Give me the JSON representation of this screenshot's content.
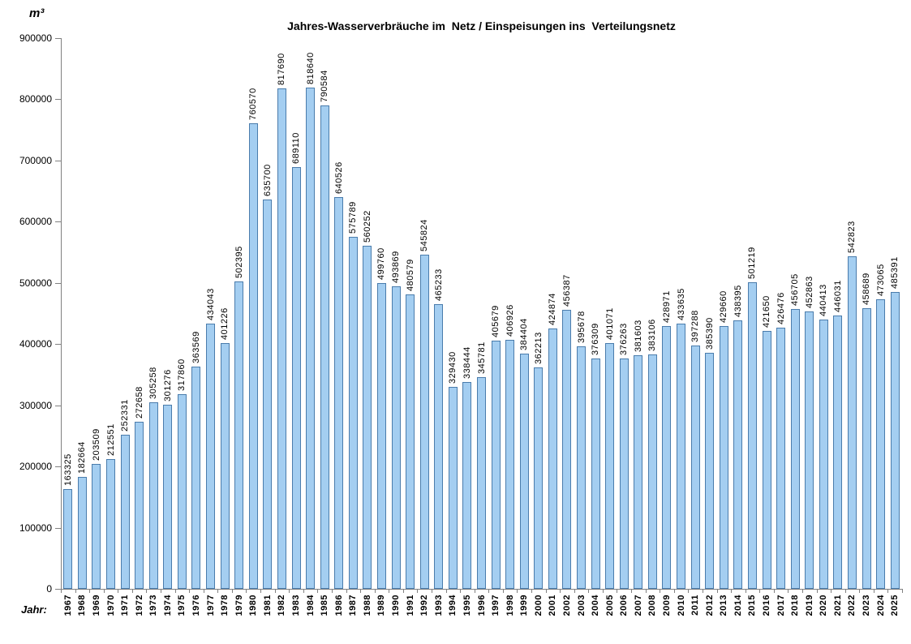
{
  "header": {
    "unit_label": "m³",
    "title": "Jahres-Wasserverbräuche im  Netz / Einspeisungen ins  Verteilungsnetz"
  },
  "footer": {
    "x_axis_caption": "Jahr:"
  },
  "chart_data": {
    "type": "bar",
    "title": "Jahres-Wasserverbräuche im Netz / Einspeisungen ins Verteilungsnetz",
    "xlabel": "Jahr:",
    "ylabel": "m³",
    "ylim": [
      0,
      900000
    ],
    "ytick_step": 100000,
    "grid": false,
    "legend": null,
    "value_labels": true,
    "label_rotation_degrees": 90,
    "colors": {
      "bar_fill": "#A4CEF1",
      "bar_border": "#4A7CAC",
      "axis": "#808080",
      "text": "#000000"
    },
    "categories": [
      "1967",
      "1968",
      "1969",
      "1970",
      "1971",
      "1972",
      "1973",
      "1974",
      "1975",
      "1976",
      "1977",
      "1978",
      "1979",
      "1980",
      "1981",
      "1982",
      "1983",
      "1984",
      "1985",
      "1986",
      "1987",
      "1988",
      "1989",
      "1990",
      "1991",
      "1992",
      "1993",
      "1994",
      "1995",
      "1996",
      "1997",
      "1998",
      "1999",
      "2000",
      "2001",
      "2002",
      "2003",
      "2004",
      "2005",
      "2006",
      "2007",
      "2008",
      "2009",
      "2010",
      "2011",
      "2012",
      "2013",
      "2014",
      "2015",
      "2016",
      "2017",
      "2018",
      "2019",
      "2020",
      "2021",
      "2022",
      "2023",
      "2024",
      "2025"
    ],
    "values": [
      163325,
      182664,
      203509,
      212551,
      252331,
      272658,
      305258,
      301276,
      317860,
      363569,
      434043,
      401226,
      502395,
      760570,
      635700,
      817690,
      689110,
      818640,
      790584,
      640526,
      575789,
      560252,
      499760,
      493869,
      480579,
      545824,
      465233,
      329430,
      338444,
      345781,
      405679,
      406926,
      384404,
      362213,
      424874,
      456387,
      395678,
      376309,
      401071,
      376263,
      381603,
      383106,
      428971,
      433635,
      397288,
      385390,
      429660,
      438395,
      501219,
      421650,
      426476,
      456705,
      452863,
      440413,
      446031,
      542823,
      458689,
      473065,
      485391
    ]
  }
}
